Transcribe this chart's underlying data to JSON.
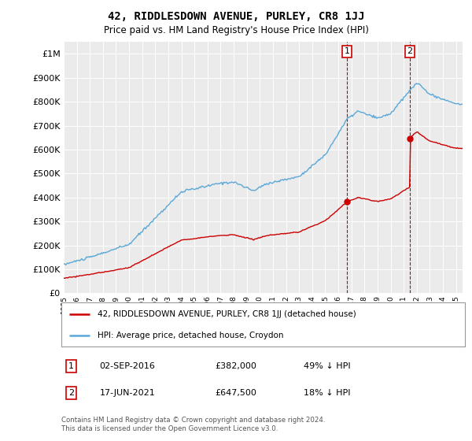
{
  "title": "42, RIDDLESDOWN AVENUE, PURLEY, CR8 1JJ",
  "subtitle": "Price paid vs. HM Land Registry's House Price Index (HPI)",
  "legend_line1": "42, RIDDLESDOWN AVENUE, PURLEY, CR8 1JJ (detached house)",
  "legend_line2": "HPI: Average price, detached house, Croydon",
  "annotation1_label": "1",
  "annotation1_date": "02-SEP-2016",
  "annotation1_price": 382000,
  "annotation1_pct": "49% ↓ HPI",
  "annotation2_label": "2",
  "annotation2_date": "17-JUN-2021",
  "annotation2_price": 647500,
  "annotation2_pct": "18% ↓ HPI",
  "footer": "Contains HM Land Registry data © Crown copyright and database right 2024.\nThis data is licensed under the Open Government Licence v3.0.",
  "hpi_color": "#5aa8d8",
  "price_color": "#cc0000",
  "annotation_color": "#cc0000",
  "bg_color": "#ffffff",
  "plot_bg_color": "#ebebeb",
  "ylim": [
    0,
    1050000
  ],
  "yticks": [
    0,
    100000,
    200000,
    300000,
    400000,
    500000,
    600000,
    700000,
    800000,
    900000,
    1000000
  ],
  "xlim_start": 1995.0,
  "xlim_end": 2025.5,
  "p1_x": 2016.67,
  "p1_y": 382000,
  "p2_x": 2021.46,
  "p2_y": 647500
}
